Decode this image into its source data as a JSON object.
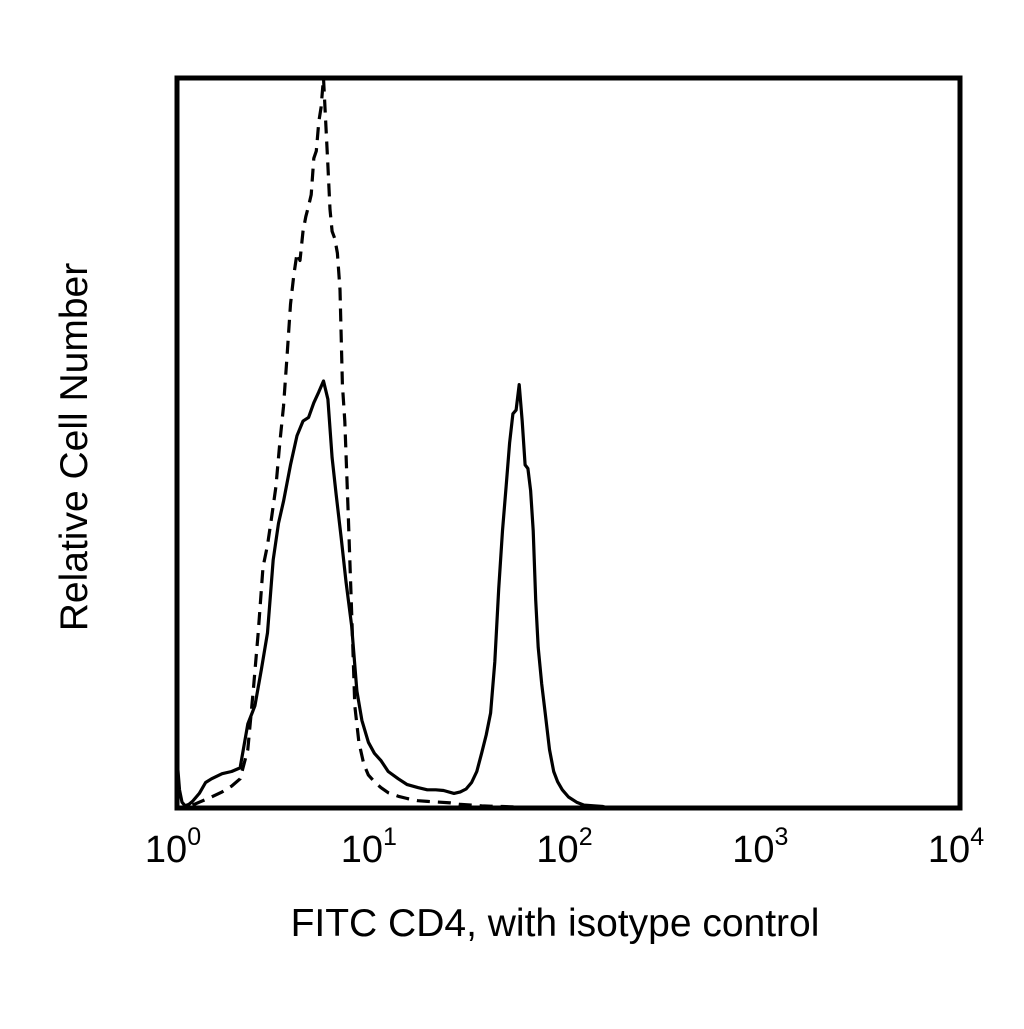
{
  "chart_data": {
    "type": "line",
    "title": "",
    "xlabel": "FITC CD4, with isotype control",
    "ylabel": "Relative Cell Number",
    "x_scale": "log",
    "xlim": [
      1,
      10000
    ],
    "ylim": [
      0,
      100
    ],
    "grid": false,
    "legend": "none",
    "x_ticks": [
      {
        "value": 1,
        "base": "10",
        "exp": "0"
      },
      {
        "value": 10,
        "base": "10",
        "exp": "1"
      },
      {
        "value": 100,
        "base": "10",
        "exp": "2"
      },
      {
        "value": 1000,
        "base": "10",
        "exp": "3"
      },
      {
        "value": 10000,
        "base": "10",
        "exp": "4"
      }
    ],
    "series": [
      {
        "style": "solid",
        "color": "#000000",
        "x": [
          1.0,
          1.03,
          1.06,
          1.1,
          1.15,
          1.2,
          1.3,
          1.4,
          1.5,
          1.7,
          1.9,
          2.1,
          2.3,
          2.5,
          2.7,
          2.9,
          3.1,
          3.3,
          3.5,
          3.8,
          4.1,
          4.4,
          4.7,
          5.0,
          5.3,
          5.6,
          5.9,
          6.2,
          6.5,
          6.9,
          7.3,
          7.8,
          8.3,
          8.8,
          9.5,
          10.2,
          11.0,
          12.0,
          13.5,
          15.0,
          17.0,
          19.0,
          21.0,
          23.0,
          26.0,
          28.0,
          30.0,
          32.0,
          34.0,
          36.0,
          38.0,
          40.0,
          42.0,
          44.0,
          46.0,
          48.0,
          50.0,
          52.0,
          54.0,
          56.0,
          58.0,
          60.0,
          62.0,
          64.0,
          66.0,
          68.0,
          70.0,
          73.0,
          76.0,
          80.0,
          84.0,
          88.0,
          93.0,
          100.0,
          110.0,
          120.0,
          135.0,
          150.0,
          160.0
        ],
        "y": [
          6.8,
          2.5,
          0.8,
          0.3,
          0.5,
          0.9,
          2.0,
          3.5,
          4.0,
          4.7,
          5.0,
          5.5,
          11.5,
          14.0,
          19.0,
          24.0,
          34.0,
          39.0,
          42.0,
          47.0,
          51.0,
          53.0,
          53.5,
          55.5,
          57.0,
          58.5,
          56.0,
          48.0,
          43.0,
          37.0,
          31.0,
          25.0,
          16.0,
          12.0,
          9.0,
          7.5,
          6.5,
          5.0,
          4.0,
          3.2,
          2.8,
          2.5,
          2.5,
          2.4,
          2.0,
          2.2,
          2.6,
          3.5,
          5.0,
          7.5,
          10.0,
          13.0,
          20.0,
          30.0,
          38.0,
          44.0,
          50.0,
          54.0,
          54.5,
          58.0,
          53.0,
          47.0,
          46.5,
          43.5,
          38.0,
          28.5,
          22.0,
          17.0,
          13.0,
          8.0,
          5.0,
          3.6,
          2.5,
          1.5,
          0.8,
          0.4,
          0.3,
          0.2,
          0.0
        ]
      },
      {
        "style": "dashed",
        "color": "#000000",
        "x": [
          1.2,
          1.3,
          1.5,
          1.7,
          1.9,
          2.1,
          2.3,
          2.45,
          2.6,
          2.75,
          2.9,
          3.05,
          3.2,
          3.35,
          3.5,
          3.65,
          3.8,
          3.95,
          4.1,
          4.25,
          4.4,
          4.55,
          4.7,
          4.85,
          5.0,
          5.15,
          5.3,
          5.45,
          5.6,
          5.75,
          5.9,
          6.05,
          6.2,
          6.4,
          6.6,
          6.8,
          7.0,
          7.2,
          7.5,
          7.8,
          8.1,
          8.5,
          9.0,
          9.5,
          10.2,
          11.0,
          12.0,
          13.5,
          15.0,
          17.0,
          19.0,
          22.0,
          25.0,
          28.0,
          32.0,
          36.0,
          40.0,
          46.0,
          52.0,
          60.0,
          70.0
        ],
        "y": [
          0.4,
          0.8,
          1.5,
          2.2,
          3.0,
          4.0,
          8.0,
          16.0,
          24.0,
          33.0,
          36.0,
          40.0,
          44.0,
          50.0,
          55.0,
          62.0,
          69.0,
          73.0,
          76.0,
          75.0,
          79.0,
          81.0,
          82.5,
          84.0,
          89.0,
          90.0,
          94.0,
          96.0,
          100.0,
          94.0,
          88.0,
          82.0,
          79.0,
          78.0,
          76.0,
          71.0,
          58.0,
          53.0,
          40.0,
          27.0,
          14.0,
          9.0,
          6.0,
          4.5,
          3.6,
          2.8,
          2.1,
          1.6,
          1.3,
          1.0,
          0.9,
          0.8,
          0.7,
          0.5,
          0.4,
          0.3,
          0.25,
          0.2,
          0.15,
          0.1,
          0.0
        ]
      }
    ]
  }
}
